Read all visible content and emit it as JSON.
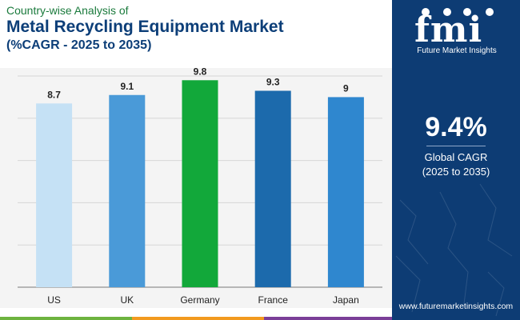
{
  "header": {
    "subtitle": "Country-wise Analysis of",
    "title": "Metal Recycling Equipment Market",
    "range": "(%CAGR - 2025 to 2035)"
  },
  "sidebar": {
    "logo_text": "fmi",
    "logo_caption": "Future Market Insights",
    "cagr_value": "9.4%",
    "cagr_label_line1": "Global CAGR",
    "cagr_label_line2": "(2025 to 2035)",
    "url": "www.futuremarketinsights.com"
  },
  "colors": {
    "brand_dark": "#0d3c74",
    "title_blue": "#0c3e78",
    "subtitle_green": "#1a7a3c"
  },
  "chart_data": {
    "type": "bar",
    "categories": [
      "US",
      "UK",
      "Germany",
      "France",
      "Japan"
    ],
    "values": [
      8.7,
      9.1,
      9.8,
      9.3,
      9
    ],
    "value_labels": [
      "8.7",
      "9.1",
      "9.8",
      "9.3",
      "9"
    ],
    "bar_colors": [
      "#c5e1f5",
      "#4a9ad8",
      "#12a83a",
      "#1c6aac",
      "#2f87cf"
    ],
    "ylim": [
      0,
      10
    ],
    "grid": true,
    "xlabel": "",
    "ylabel": ""
  }
}
